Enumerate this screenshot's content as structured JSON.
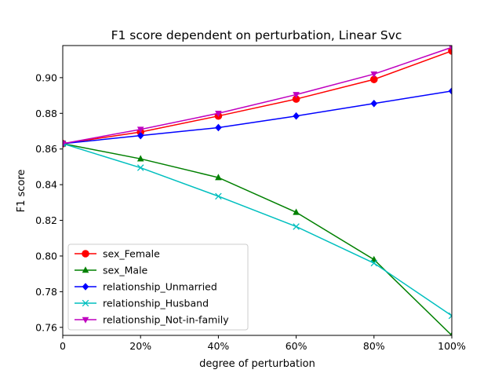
{
  "chart_data": {
    "type": "line",
    "title": "F1 score dependent on perturbation, Linear Svc",
    "xlabel": "degree of perturbation",
    "ylabel": "F1 score",
    "categories": [
      "0",
      "20%",
      "40%",
      "60%",
      "80%",
      "100%"
    ],
    "x": [
      0,
      20,
      40,
      60,
      80,
      100
    ],
    "xlim": [
      0,
      100
    ],
    "ylim": [
      0.7555,
      0.918
    ],
    "yticks": [
      0.76,
      0.78,
      0.8,
      0.82,
      0.84,
      0.86,
      0.88,
      0.9
    ],
    "ytick_labels": [
      "0.76",
      "0.78",
      "0.80",
      "0.82",
      "0.84",
      "0.86",
      "0.88",
      "0.90"
    ],
    "grid": false,
    "legend_position": "lower-left",
    "series": [
      {
        "name": "sex_Female",
        "color": "#ff0000",
        "marker": "circle",
        "values": [
          0.863,
          0.8695,
          0.8785,
          0.888,
          0.899,
          0.915
        ]
      },
      {
        "name": "sex_Male",
        "color": "#008000",
        "marker": "triangle-up",
        "values": [
          0.863,
          0.8545,
          0.844,
          0.8245,
          0.798,
          0.7555
        ]
      },
      {
        "name": "relationship_Unmarried",
        "color": "#0000ff",
        "marker": "diamond",
        "values": [
          0.863,
          0.8675,
          0.872,
          0.8785,
          0.8855,
          0.8925
        ]
      },
      {
        "name": "relationship_Husband",
        "color": "#00bfbf",
        "marker": "x",
        "values": [
          0.863,
          0.8495,
          0.8335,
          0.8165,
          0.796,
          0.7665
        ]
      },
      {
        "name": "relationship_Not-in-family",
        "color": "#bf00bf",
        "marker": "triangle-down",
        "values": [
          0.863,
          0.871,
          0.88,
          0.8905,
          0.902,
          0.917
        ]
      }
    ]
  }
}
